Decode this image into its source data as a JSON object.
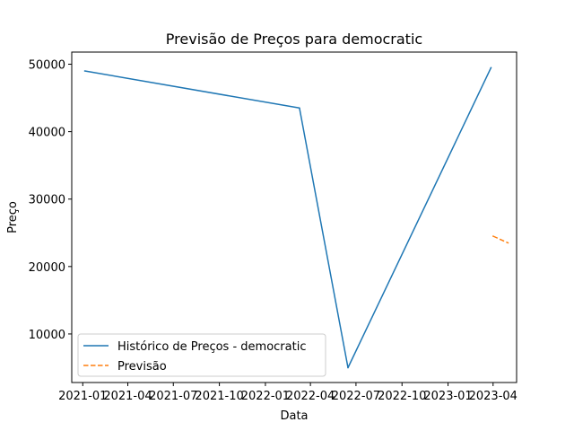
{
  "chart_data": {
    "type": "line",
    "title": "Previsão de Preços para democratic",
    "xlabel": "Data",
    "ylabel": "Preço",
    "x_tick_labels": [
      "2021-01",
      "2021-04",
      "2021-07",
      "2021-10",
      "2022-01",
      "2022-04",
      "2022-07",
      "2022-10",
      "2023-01",
      "2023-04"
    ],
    "y_tick_labels": [
      "10000",
      "20000",
      "30000",
      "40000",
      "50000"
    ],
    "x_range": [
      "2020-12-10",
      "2023-05-18"
    ],
    "ylim": [
      2800,
      51800
    ],
    "grid": false,
    "legend_position": "lower-left",
    "series": [
      {
        "name": "Histórico de Preços - democratic",
        "color": "#1f77b4",
        "style": "solid",
        "points": [
          {
            "x": "2021-01-05",
            "y": 49000
          },
          {
            "x": "2022-03-10",
            "y": 43500
          },
          {
            "x": "2022-06-15",
            "y": 5000
          },
          {
            "x": "2023-03-28",
            "y": 49500
          }
        ]
      },
      {
        "name": "Previsão",
        "color": "#ff7f0e",
        "style": "dashed",
        "points": [
          {
            "x": "2023-04-01",
            "y": 24500
          },
          {
            "x": "2023-05-01",
            "y": 23500
          }
        ]
      }
    ]
  }
}
